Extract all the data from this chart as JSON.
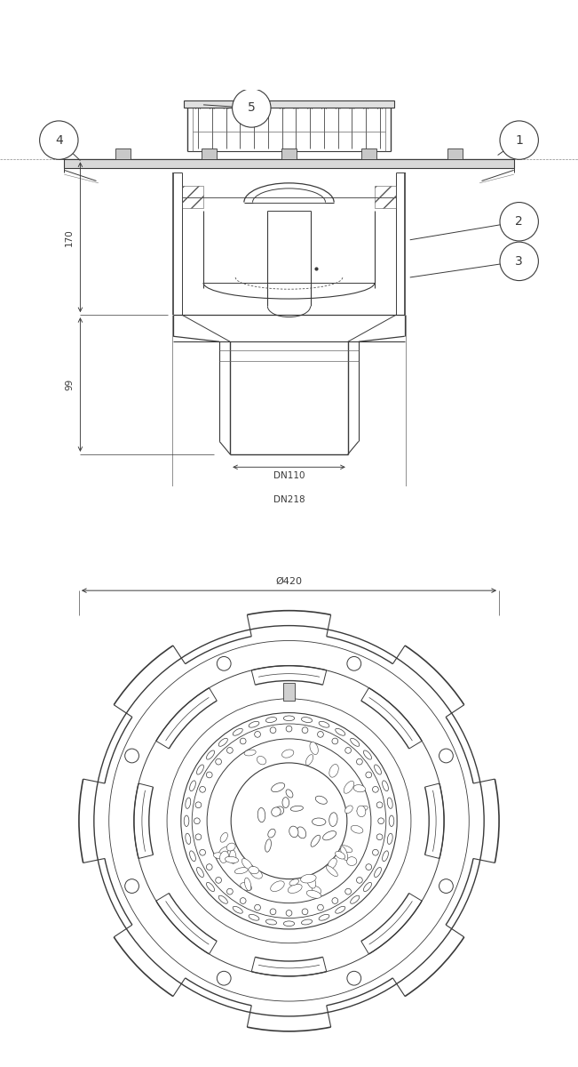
{
  "bg_color": "#ffffff",
  "lc": "#3a3a3a",
  "lc2": "#555555",
  "fig_width": 6.51,
  "fig_height": 12.0,
  "dpi": 100,
  "labels": {
    "dim_170": "170",
    "dim_99": "99",
    "dim_DN110": "DN110",
    "dim_DN218": "DN218",
    "dim_O420": "Ø420"
  }
}
